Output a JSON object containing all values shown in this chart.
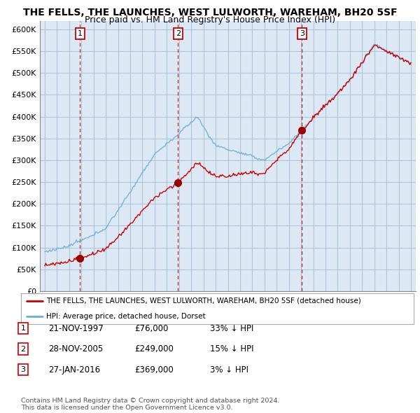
{
  "title": "THE FELLS, THE LAUNCHES, WEST LULWORTH, WAREHAM, BH20 5SF",
  "subtitle": "Price paid vs. HM Land Registry's House Price Index (HPI)",
  "ylim": [
    0,
    620000
  ],
  "yticks": [
    0,
    50000,
    100000,
    150000,
    200000,
    250000,
    300000,
    350000,
    400000,
    450000,
    500000,
    550000,
    600000
  ],
  "ytick_labels": [
    "£0",
    "£50K",
    "£100K",
    "£150K",
    "£200K",
    "£250K",
    "£300K",
    "£350K",
    "£400K",
    "£450K",
    "£500K",
    "£550K",
    "£600K"
  ],
  "hpi_color": "#6baed6",
  "price_color": "#cc0000",
  "marker_color": "#990000",
  "vline_color": "#cc0000",
  "chart_bg_color": "#dce9f5",
  "bg_color": "#ffffff",
  "grid_color": "#b0c4d8",
  "sale_year_nums": [
    1997.89,
    2005.91,
    2016.07
  ],
  "sale_prices": [
    76000,
    249000,
    369000
  ],
  "sale_labels": [
    "1",
    "2",
    "3"
  ],
  "legend_house_label": "THE FELLS, THE LAUNCHES, WEST LULWORTH, WAREHAM, BH20 5SF (detached house)",
  "legend_hpi_label": "HPI: Average price, detached house, Dorset",
  "table_entries": [
    {
      "num": "1",
      "date": "21-NOV-1997",
      "price": "£76,000",
      "note": "33% ↓ HPI"
    },
    {
      "num": "2",
      "date": "28-NOV-2005",
      "price": "£249,000",
      "note": "15% ↓ HPI"
    },
    {
      "num": "3",
      "date": "27-JAN-2016",
      "price": "£369,000",
      "note": "3% ↓ HPI"
    }
  ],
  "footnote": "Contains HM Land Registry data © Crown copyright and database right 2024.\nThis data is licensed under the Open Government Licence v3.0.",
  "title_fontsize": 10,
  "subtitle_fontsize": 9,
  "tick_fontsize": 8,
  "label_fontsize": 8,
  "xlim_start": 1994.6,
  "xlim_end": 2025.4
}
